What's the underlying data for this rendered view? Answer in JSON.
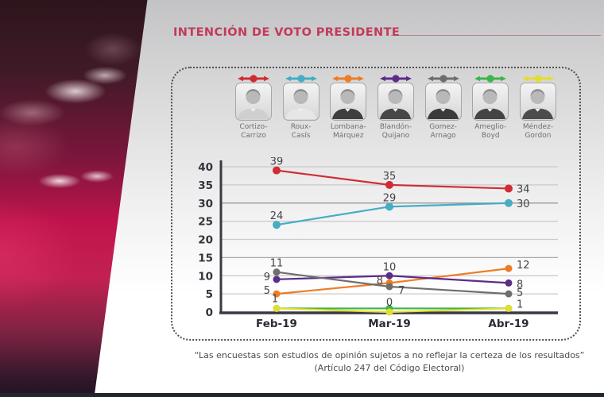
{
  "title": "INTENCIÓN DE VOTO PRESIDENTE",
  "candidates": [
    {
      "name": "Cortizo-Carrizo",
      "line1": "Cortizo-",
      "line2": "Carrizo",
      "color": "#d12c32"
    },
    {
      "name": "Roux-Casís",
      "line1": "Roux-",
      "line2": "Casís",
      "color": "#45adc4"
    },
    {
      "name": "Lombana-Márquez",
      "line1": "Lombana-",
      "line2": "Márquez",
      "color": "#ee7c26"
    },
    {
      "name": "Blandón-Quijano",
      "line1": "Blandón-",
      "line2": "Quijano",
      "color": "#5c2d87"
    },
    {
      "name": "Gomez-Arnago",
      "line1": "Gomez-",
      "line2": "Arnago",
      "color": "#6e6e71"
    },
    {
      "name": "Ameglio-Boyd",
      "line1": "Ameglio-",
      "line2": "Boyd",
      "color": "#3db54a"
    },
    {
      "name": "Méndez-Gordon",
      "line1": "Méndez-",
      "line2": "Gordon",
      "color": "#e2dd33"
    }
  ],
  "chart_data": {
    "type": "line",
    "title": "INTENCIÓN DE VOTO PRESIDENTE",
    "categories": [
      "Feb-19",
      "Mar-19",
      "Abr-19"
    ],
    "series": [
      {
        "name": "Cortizo-Carrizo",
        "color": "#d12c32",
        "values": [
          39,
          35,
          34
        ]
      },
      {
        "name": "Roux-Casís",
        "color": "#45adc4",
        "values": [
          24,
          29,
          30
        ]
      },
      {
        "name": "Lombana-Márquez",
        "color": "#ee7c26",
        "values": [
          5,
          8,
          12
        ]
      },
      {
        "name": "Blandón-Quijano",
        "color": "#5c2d87",
        "values": [
          9,
          10,
          8
        ]
      },
      {
        "name": "Gomez-Arnago",
        "color": "#6e6e71",
        "values": [
          11,
          7,
          5
        ]
      },
      {
        "name": "Ameglio-Boyd",
        "color": "#3db54a",
        "values": [
          1,
          1,
          1
        ],
        "show_labels": false
      },
      {
        "name": "Méndez-Gordon",
        "color": "#e2dd33",
        "values": [
          1,
          0,
          1
        ]
      }
    ],
    "ylim": [
      0,
      40
    ],
    "ytick_step": 5,
    "grid": true,
    "legend_position": "top"
  },
  "footer": {
    "line1": "“Las encuestas son estudios de opinión sujetos a no reflejar la certeza de los resultados”",
    "line2": "(Artículo 247 del Código Electoral)"
  }
}
